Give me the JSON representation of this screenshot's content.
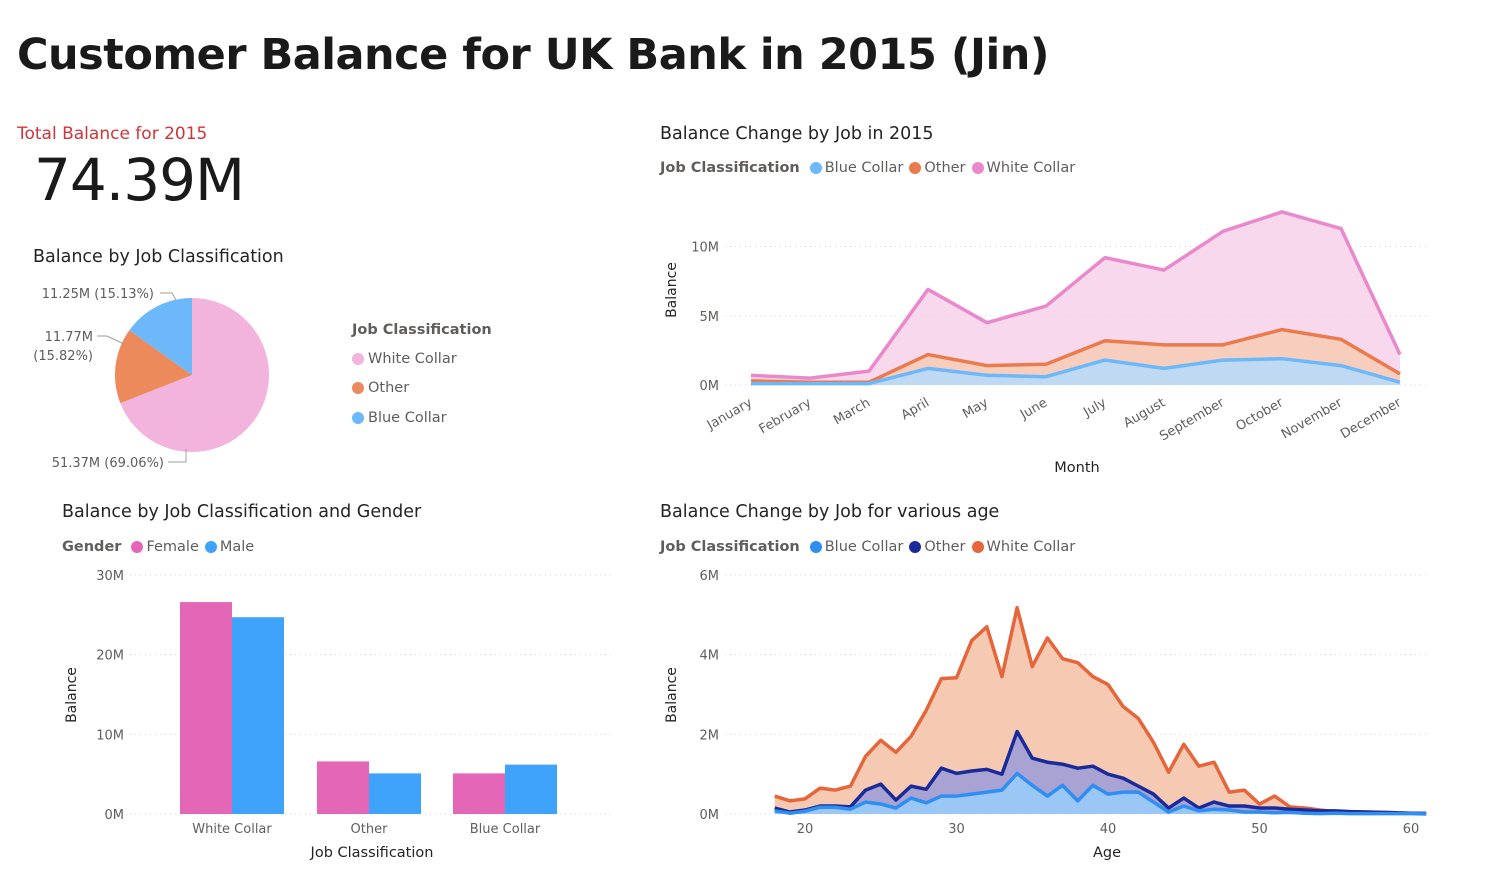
{
  "page": {
    "title": "Customer Balance for UK Bank in 2015 (Jin)",
    "kpi": {
      "label": "Total Balance for 2015",
      "value": "74.39M"
    }
  },
  "colors": {
    "pie_white_collar": "#f2b3dc",
    "pie_other": "#ec8a5c",
    "pie_blue_collar": "#6cb8fa",
    "area_white_collar_line": "#e989cc",
    "area_white_collar_fill": "#f6d1e9",
    "area_other_line": "#e97b4c",
    "area_other_fill": "#f7cdb6",
    "area_blue_line": "#6cb8fa",
    "area_blue_fill": "#b5dafd",
    "bar_female": "#e466b6",
    "bar_male": "#3fa3fb",
    "age_blue_line": "#2f8ef2",
    "age_blue_fill": "#99cbf9",
    "age_other_line": "#1b2a99",
    "age_other_fill": "#a09ed6",
    "age_white_line": "#e4663a",
    "age_white_fill": "#f4c3aa"
  },
  "chart_data": [
    {
      "type": "pie",
      "title": "Balance by Job Classification",
      "legend_title": "Job Classification",
      "legend_position": "right",
      "slices": [
        {
          "name": "White Collar",
          "value": 51.37,
          "label": "51.37M (69.06%)"
        },
        {
          "name": "Other",
          "value": 11.77,
          "label_line1": "11.77M",
          "label_line2": "(15.82%)"
        },
        {
          "name": "Blue Collar",
          "value": 11.25,
          "label": "11.25M (15.13%)"
        }
      ]
    },
    {
      "type": "area",
      "title": "Balance Change by Job in 2015",
      "legend_title": "Job Classification",
      "legend_position": "top-left",
      "xlabel": "Month",
      "ylabel": "Balance",
      "ylim": [
        0,
        13
      ],
      "yticks": [
        0,
        5,
        10
      ],
      "ytick_labels": [
        "0M",
        "5M",
        "10M"
      ],
      "categories": [
        "January",
        "February",
        "March",
        "April",
        "May",
        "June",
        "July",
        "August",
        "September",
        "October",
        "November",
        "December"
      ],
      "series": [
        {
          "name": "Blue Collar",
          "values": [
            0.1,
            0.1,
            0.1,
            1.2,
            0.7,
            0.6,
            1.8,
            1.2,
            1.8,
            1.9,
            1.4,
            0.2
          ]
        },
        {
          "name": "Other",
          "values": [
            0.3,
            0.2,
            0.2,
            2.2,
            1.4,
            1.5,
            3.2,
            2.9,
            2.9,
            4.0,
            3.3,
            0.8
          ]
        },
        {
          "name": "White Collar",
          "values": [
            0.7,
            0.5,
            1.0,
            6.9,
            4.5,
            5.7,
            9.2,
            8.3,
            11.1,
            12.5,
            11.3,
            2.2
          ]
        }
      ],
      "grid": true
    },
    {
      "type": "bar",
      "title": "Balance by Job Classification and Gender",
      "legend_title": "Gender",
      "legend_position": "top-left",
      "xlabel": "Job Classification",
      "ylabel": "Balance",
      "ylim": [
        0,
        30
      ],
      "yticks": [
        0,
        10,
        20,
        30
      ],
      "ytick_labels": [
        "0M",
        "10M",
        "20M",
        "30M"
      ],
      "categories": [
        "White Collar",
        "Other",
        "Blue Collar"
      ],
      "series": [
        {
          "name": "Female",
          "values": [
            26.6,
            6.6,
            5.1
          ]
        },
        {
          "name": "Male",
          "values": [
            24.7,
            5.1,
            6.2
          ]
        }
      ],
      "grid": true
    },
    {
      "type": "area",
      "title": "Balance Change by Job for various age",
      "legend_title": "Job Classification",
      "legend_position": "top-left",
      "xlabel": "Age",
      "ylabel": "Balance",
      "xlim": [
        17,
        62
      ],
      "xticks": [
        20,
        30,
        40,
        50,
        60
      ],
      "ylim": [
        0,
        6
      ],
      "yticks": [
        0,
        2,
        4,
        6
      ],
      "ytick_labels": [
        "0M",
        "2M",
        "4M",
        "6M"
      ],
      "x": [
        18,
        19,
        20,
        21,
        22,
        23,
        24,
        25,
        26,
        27,
        28,
        29,
        30,
        31,
        32,
        33,
        34,
        35,
        36,
        37,
        38,
        39,
        40,
        41,
        42,
        43,
        44,
        45,
        46,
        47,
        48,
        49,
        50,
        51,
        52,
        53,
        54,
        55,
        56,
        57,
        58,
        59,
        60,
        61
      ],
      "series": [
        {
          "name": "Blue Collar",
          "values": [
            0.08,
            0.02,
            0.07,
            0.17,
            0.17,
            0.12,
            0.3,
            0.25,
            0.15,
            0.4,
            0.28,
            0.45,
            0.45,
            0.5,
            0.55,
            0.6,
            1.02,
            0.72,
            0.45,
            0.72,
            0.33,
            0.72,
            0.5,
            0.55,
            0.55,
            0.3,
            0.05,
            0.2,
            0.08,
            0.12,
            0.1,
            0.05,
            0.05,
            0.03,
            0.04,
            0.02,
            0.01,
            0.02,
            0.01,
            0.01,
            0.01,
            0.01,
            0.01,
            0.0
          ]
        },
        {
          "name": "Other",
          "values": [
            0.15,
            0.05,
            0.1,
            0.2,
            0.2,
            0.18,
            0.6,
            0.75,
            0.35,
            0.7,
            0.62,
            1.15,
            1.02,
            1.08,
            1.12,
            1.0,
            2.07,
            1.4,
            1.3,
            1.25,
            1.15,
            1.2,
            1.0,
            0.9,
            0.7,
            0.5,
            0.15,
            0.4,
            0.15,
            0.3,
            0.2,
            0.2,
            0.15,
            0.15,
            0.12,
            0.1,
            0.08,
            0.08,
            0.06,
            0.05,
            0.04,
            0.03,
            0.02,
            0.01
          ]
        },
        {
          "name": "White Collar",
          "values": [
            0.45,
            0.33,
            0.38,
            0.65,
            0.6,
            0.7,
            1.45,
            1.85,
            1.55,
            1.95,
            2.6,
            3.4,
            3.42,
            4.35,
            4.7,
            3.45,
            5.18,
            3.7,
            4.42,
            3.9,
            3.8,
            3.45,
            3.25,
            2.7,
            2.4,
            1.8,
            1.05,
            1.75,
            1.2,
            1.3,
            0.55,
            0.6,
            0.25,
            0.45,
            0.18,
            0.15,
            0.1,
            0.06,
            0.05,
            0.05,
            0.04,
            0.03,
            0.02,
            0.02
          ]
        }
      ],
      "grid": true
    }
  ]
}
